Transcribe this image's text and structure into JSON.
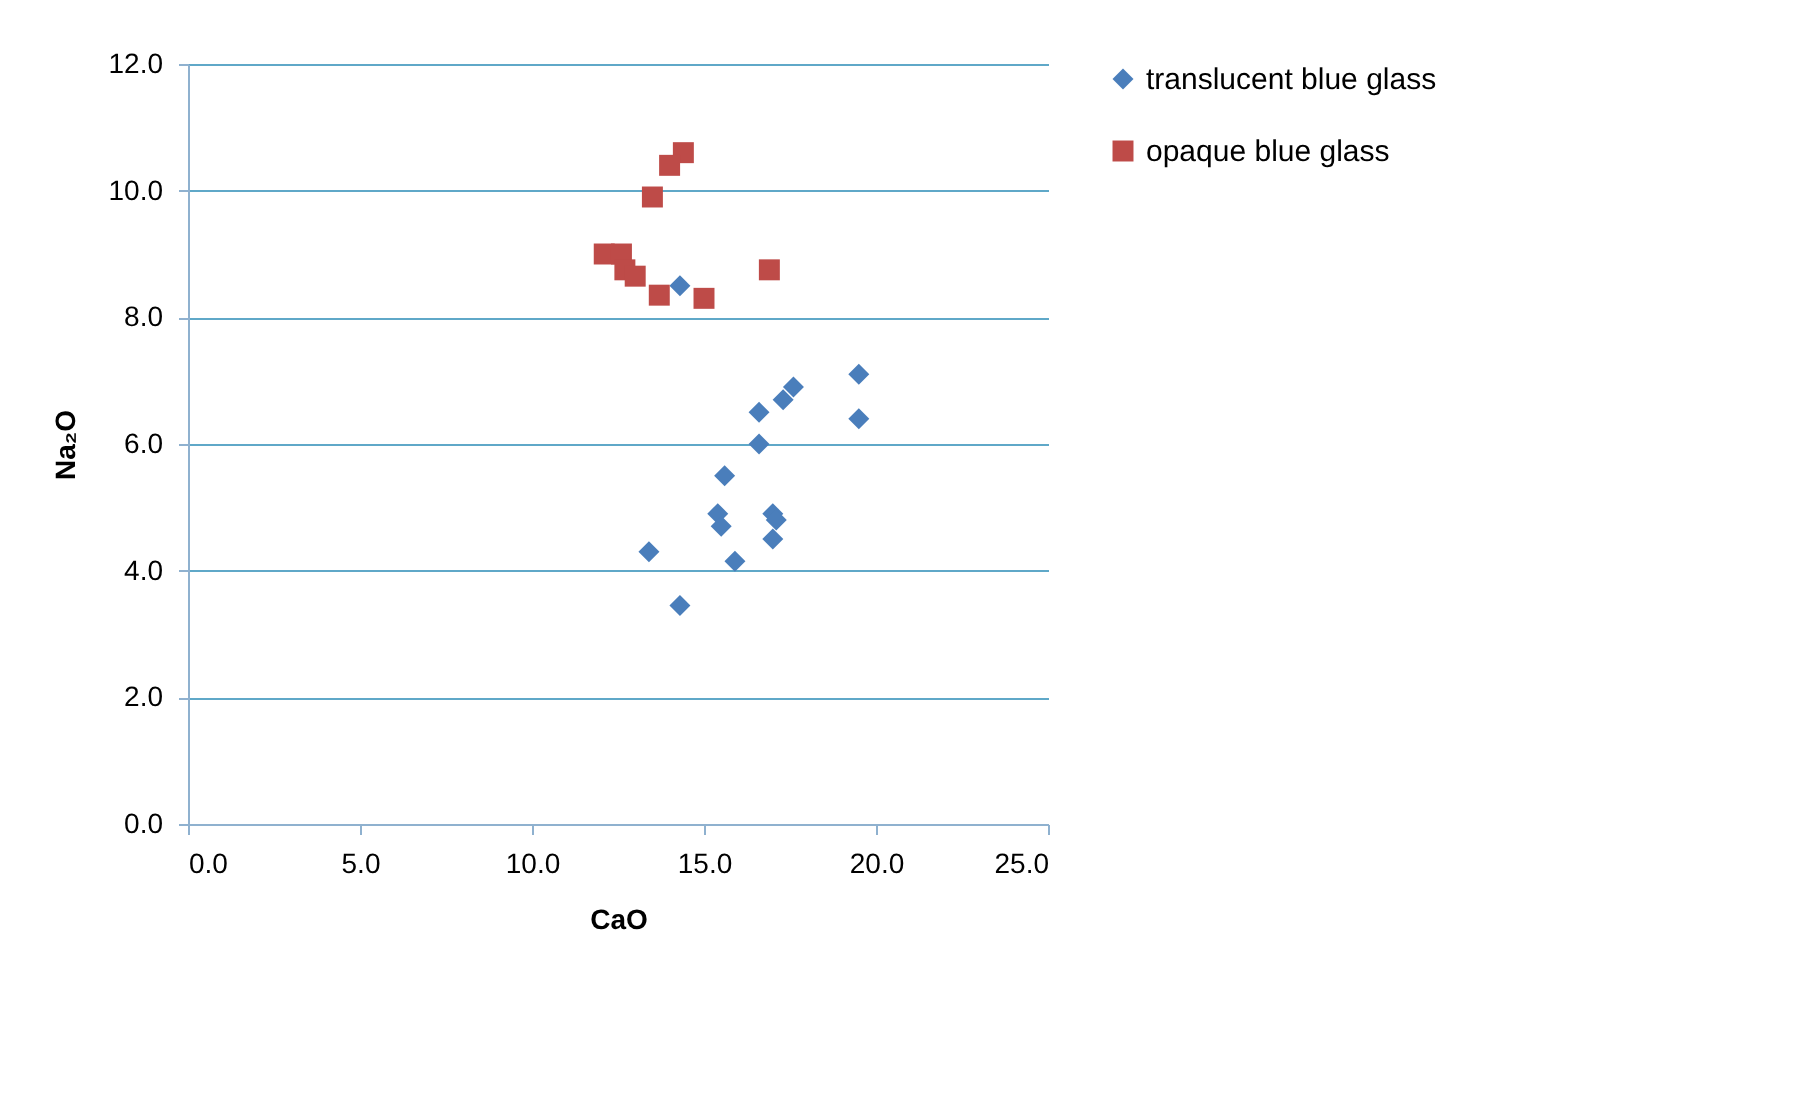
{
  "chart_data": {
    "type": "scatter",
    "xlabel": "CaO",
    "ylabel": "Na₂O",
    "xlim": [
      0,
      25
    ],
    "xticks": [
      {
        "value": 0,
        "label": "0.0"
      },
      {
        "value": 5,
        "label": "5.0"
      },
      {
        "value": 10,
        "label": "10.0"
      },
      {
        "value": 15,
        "label": "15.0"
      },
      {
        "value": 20,
        "label": "20.0"
      },
      {
        "value": 25,
        "label": "25.0"
      }
    ],
    "ylim": [
      0,
      12
    ],
    "yticks": [
      {
        "value": 0,
        "label": "0.0"
      },
      {
        "value": 2,
        "label": "2.0"
      },
      {
        "value": 4,
        "label": "4.0"
      },
      {
        "value": 6,
        "label": "6.0"
      },
      {
        "value": 8,
        "label": "8.0"
      },
      {
        "value": 10,
        "label": "10.0"
      },
      {
        "value": 12,
        "label": "12.0"
      }
    ],
    "grid": "y",
    "legend": "right",
    "series": [
      {
        "name": "translucent blue glass",
        "color": "#4a7ebb",
        "marker": "diamond",
        "x": [
          13.4,
          14.3,
          15.9,
          15.4,
          15.5,
          15.6,
          16.6,
          16.6,
          17.0,
          17.0,
          17.1,
          17.3,
          17.6,
          19.5,
          19.5,
          14.3
        ],
        "values": [
          4.3,
          3.45,
          4.15,
          4.9,
          4.7,
          5.5,
          6.0,
          6.5,
          4.9,
          4.5,
          4.8,
          6.7,
          6.9,
          7.1,
          6.4,
          8.5
        ]
      },
      {
        "name": "opaque blue glass",
        "color": "#be4b48",
        "marker": "square",
        "x": [
          14.4,
          14.0,
          13.5,
          12.1,
          12.6,
          12.7,
          13.0,
          13.7,
          15.0,
          16.9
        ],
        "values": [
          10.6,
          10.4,
          9.9,
          9.0,
          9.0,
          8.75,
          8.65,
          8.35,
          8.3,
          8.75
        ]
      }
    ]
  }
}
